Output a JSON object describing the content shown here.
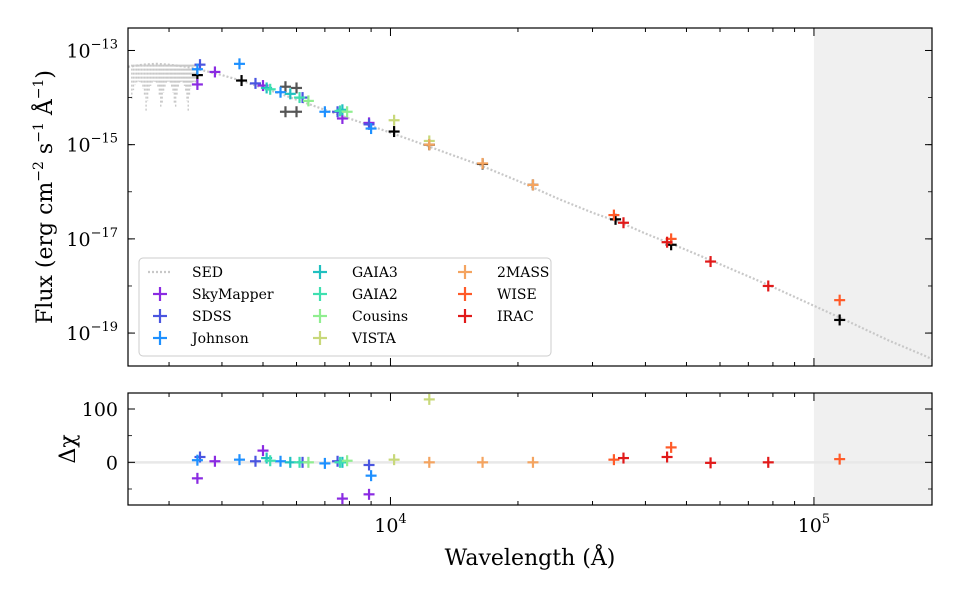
{
  "chart_data": {
    "type": "scatter",
    "xlabel": "Wavelength (Å)",
    "xscale": "log",
    "xlim": [
      2400,
      190000
    ],
    "shaded_region": [
      100000,
      190000
    ],
    "top_panel": {
      "ylabel_parts": [
        "Flux ",
        "(erg cm",
        "−2",
        " s",
        "−1",
        " Å",
        "−1",
        ")"
      ],
      "yscale": "log",
      "ylim": [
        2e-20,
        3e-13
      ],
      "yticks": [
        {
          "value": 1e-13,
          "base": "10",
          "exp": "−13"
        },
        {
          "value": 1e-15,
          "base": "10",
          "exp": "−15"
        },
        {
          "value": 1e-17,
          "base": "10",
          "exp": "−17"
        },
        {
          "value": 1e-19,
          "base": "10",
          "exp": "−19"
        }
      ]
    },
    "bottom_panel": {
      "ylabel": "Δχ",
      "ylim": [
        -80,
        130
      ],
      "yticks": [
        {
          "value": 100,
          "label": "100"
        },
        {
          "value": 0,
          "label": "0"
        }
      ]
    },
    "xticks": [
      {
        "value": 10000,
        "base": "10",
        "exp": "4"
      },
      {
        "value": 100000,
        "base": "10",
        "exp": "5"
      }
    ],
    "sed_line": {
      "name": "SED",
      "color": "#c8c8c8",
      "points": [
        [
          2400,
          4.5e-14
        ],
        [
          2600,
          5e-14
        ],
        [
          2800,
          5.2e-14
        ],
        [
          3000,
          5e-14
        ],
        [
          3300,
          4.5e-14
        ],
        [
          3600,
          3.8e-14
        ],
        [
          4000,
          3e-14
        ],
        [
          4500,
          2.2e-14
        ],
        [
          5000,
          1.6e-14
        ],
        [
          5500,
          1.2e-14
        ],
        [
          6000,
          9e-15
        ],
        [
          7000,
          5.5e-15
        ],
        [
          8000,
          3.6e-15
        ],
        [
          9000,
          2.5e-15
        ],
        [
          10000,
          1.8e-15
        ],
        [
          12000,
          1e-15
        ],
        [
          14000,
          6e-16
        ],
        [
          16000,
          3.9e-16
        ],
        [
          20000,
          1.7e-16
        ],
        [
          25000,
          7e-17
        ],
        [
          30000,
          3.6e-17
        ],
        [
          35000,
          2.2e-17
        ],
        [
          40000,
          1.3e-17
        ],
        [
          45000,
          8.5e-18
        ],
        [
          50000,
          5.8e-18
        ],
        [
          60000,
          2.9e-18
        ],
        [
          70000,
          1.6e-18
        ],
        [
          80000,
          9.5e-19
        ],
        [
          100000,
          3.8e-19
        ],
        [
          120000,
          1.8e-19
        ],
        [
          150000,
          7e-20
        ],
        [
          180000,
          3.5e-20
        ],
        [
          190000,
          2.8e-20
        ]
      ]
    },
    "model_points": [
      {
        "x": 3500,
        "y": 3e-14
      },
      {
        "x": 4450,
        "y": 2.3e-14
      },
      {
        "x": 5650,
        "y": 1.7e-14
      },
      {
        "x": 5650,
        "y": 5e-15
      },
      {
        "x": 6000,
        "y": 1.6e-14
      },
      {
        "x": 6000,
        "y": 5e-15
      },
      {
        "x": 10200,
        "y": 1.9e-15
      },
      {
        "x": 12350,
        "y": 1e-15
      },
      {
        "x": 16500,
        "y": 3.9e-16
      },
      {
        "x": 21700,
        "y": 1.4e-16
      },
      {
        "x": 34000,
        "y": 2.6e-17
      },
      {
        "x": 46000,
        "y": 7.5e-18
      },
      {
        "x": 115000,
        "y": 1.9e-19
      }
    ],
    "series": [
      {
        "name": "SkyMapper",
        "color": "#8a2be2",
        "points": [
          {
            "x": 3500,
            "y": 1.9e-14,
            "dchi": -30
          },
          {
            "x": 3850,
            "y": 3.5e-14,
            "dchi": 2
          },
          {
            "x": 5000,
            "y": 1.8e-14,
            "dchi": 22
          },
          {
            "x": 7700,
            "y": 3.6e-15,
            "dchi": -68
          },
          {
            "x": 8900,
            "y": 2.9e-15,
            "dchi": -60
          }
        ]
      },
      {
        "name": "SDSS",
        "color": "#4a55e0",
        "points": [
          {
            "x": 3550,
            "y": 5e-14,
            "dchi": 10
          },
          {
            "x": 4800,
            "y": 2e-14,
            "dchi": 2
          },
          {
            "x": 6200,
            "y": 1e-14,
            "dchi": 0
          },
          {
            "x": 7500,
            "y": 5e-15,
            "dchi": 2
          },
          {
            "x": 8900,
            "y": 2.7e-15,
            "dchi": -5
          }
        ]
      },
      {
        "name": "Johnson",
        "color": "#1e90ff",
        "points": [
          {
            "x": 3500,
            "y": 4e-14,
            "dchi": 4
          },
          {
            "x": 4400,
            "y": 5.2e-14,
            "dchi": 5
          },
          {
            "x": 5500,
            "y": 1.3e-14,
            "dchi": 2
          },
          {
            "x": 7000,
            "y": 5e-15,
            "dchi": -2
          },
          {
            "x": 9000,
            "y": 2.2e-15,
            "dchi": -25
          }
        ]
      },
      {
        "name": "GAIA3",
        "color": "#20c0c0",
        "points": [
          {
            "x": 5100,
            "y": 1.6e-14,
            "dchi": 8
          },
          {
            "x": 5800,
            "y": 1.2e-14,
            "dchi": 0
          },
          {
            "x": 7700,
            "y": 5.5e-15,
            "dchi": 0
          }
        ]
      },
      {
        "name": "GAIA2",
        "color": "#3fe0b0",
        "points": [
          {
            "x": 5200,
            "y": 1.5e-14,
            "dchi": 3
          },
          {
            "x": 6100,
            "y": 1e-14,
            "dchi": 0
          },
          {
            "x": 7600,
            "y": 5.2e-15,
            "dchi": 0
          }
        ]
      },
      {
        "name": "Cousins",
        "color": "#90ee90",
        "points": [
          {
            "x": 6400,
            "y": 8.5e-15,
            "dchi": 0
          },
          {
            "x": 7900,
            "y": 5e-15,
            "dchi": 3
          }
        ]
      },
      {
        "name": "VISTA",
        "color": "#c8d87a",
        "points": [
          {
            "x": 10200,
            "y": 3.3e-15,
            "dchi": 5
          },
          {
            "x": 12350,
            "y": 1.2e-15,
            "dchi": 118
          }
        ]
      },
      {
        "name": "2MASS",
        "color": "#f4a460",
        "points": [
          {
            "x": 12350,
            "y": 1e-15,
            "dchi": 0
          },
          {
            "x": 16500,
            "y": 4e-16,
            "dchi": 0
          },
          {
            "x": 21700,
            "y": 1.4e-16,
            "dchi": 0
          }
        ]
      },
      {
        "name": "WISE",
        "color": "#ff5a28",
        "points": [
          {
            "x": 33700,
            "y": 3.2e-17,
            "dchi": 5
          },
          {
            "x": 46000,
            "y": 1e-17,
            "dchi": 28
          },
          {
            "x": 115000,
            "y": 5e-19,
            "dchi": 6
          }
        ]
      },
      {
        "name": "IRAC",
        "color": "#e11a1a",
        "points": [
          {
            "x": 35500,
            "y": 2.2e-17,
            "dchi": 8
          },
          {
            "x": 45000,
            "y": 8.5e-18,
            "dchi": 10
          },
          {
            "x": 57000,
            "y": 3.3e-18,
            "dchi": -1
          },
          {
            "x": 78000,
            "y": 1e-18,
            "dchi": 0
          }
        ]
      }
    ],
    "legend": {
      "placement": "lower-left",
      "entries": [
        "SED",
        "SkyMapper",
        "SDSS",
        "Johnson",
        "GAIA3",
        "GAIA2",
        "Cousins",
        "VISTA",
        "2MASS",
        "WISE",
        "IRAC"
      ]
    }
  }
}
